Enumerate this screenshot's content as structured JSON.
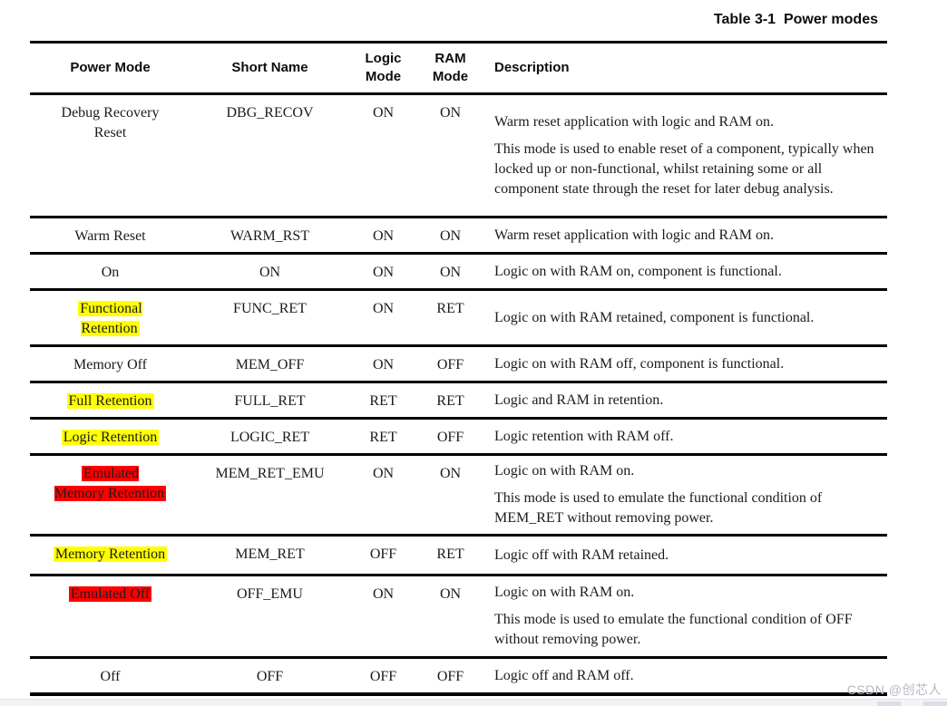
{
  "title": "Table 3-1  Power modes",
  "watermark": "CSDN @创芯人",
  "colors": {
    "highlight_yellow": "#ffff00",
    "highlight_red": "#ff0000",
    "rule_black": "#000000",
    "watermark_gray": "#b4b8bd"
  },
  "table": {
    "headers": [
      "Power Mode",
      "Short Name",
      "Logic Mode",
      "RAM Mode",
      "Description"
    ],
    "rows": [
      {
        "power_mode": {
          "lines": [
            "Debug Recovery",
            "Reset"
          ],
          "highlight": "none"
        },
        "short_name": "DBG_RECOV",
        "logic_mode": "ON",
        "ram_mode": "ON",
        "description": [
          "Warm reset application with logic and RAM on.",
          "This mode is used to enable reset of a component, typically when locked up or non-functional, whilst retaining some or all component state through the reset for later debug analysis."
        ]
      },
      {
        "power_mode": {
          "lines": [
            "Warm Reset"
          ],
          "highlight": "none"
        },
        "short_name": "WARM_RST",
        "logic_mode": "ON",
        "ram_mode": "ON",
        "description": [
          "Warm reset application with logic and RAM on."
        ]
      },
      {
        "power_mode": {
          "lines": [
            "On"
          ],
          "highlight": "none"
        },
        "short_name": "ON",
        "logic_mode": "ON",
        "ram_mode": "ON",
        "description": [
          "Logic on with RAM on, component is functional."
        ]
      },
      {
        "power_mode": {
          "lines": [
            "Functional",
            "Retention"
          ],
          "highlight": "yellow"
        },
        "short_name": "FUNC_RET",
        "logic_mode": "ON",
        "ram_mode": "RET",
        "description": [
          "Logic on with RAM retained, component is functional."
        ]
      },
      {
        "power_mode": {
          "lines": [
            "Memory Off"
          ],
          "highlight": "none"
        },
        "short_name": "MEM_OFF",
        "logic_mode": "ON",
        "ram_mode": "OFF",
        "description": [
          "Logic on with RAM off, component is functional."
        ]
      },
      {
        "power_mode": {
          "lines": [
            "Full Retention"
          ],
          "highlight": "yellow"
        },
        "short_name": "FULL_RET",
        "logic_mode": "RET",
        "ram_mode": "RET",
        "description": [
          "Logic and RAM in retention."
        ]
      },
      {
        "power_mode": {
          "lines": [
            "Logic Retention"
          ],
          "highlight": "yellow"
        },
        "short_name": "LOGIC_RET",
        "logic_mode": "RET",
        "ram_mode": "OFF",
        "description": [
          "Logic retention with RAM off."
        ]
      },
      {
        "power_mode": {
          "lines": [
            "Emulated",
            "Memory Retention"
          ],
          "highlight": "red"
        },
        "short_name": "MEM_RET_EMU",
        "logic_mode": "ON",
        "ram_mode": "ON",
        "description": [
          "Logic on with RAM on.",
          "This mode is used to emulate the functional condition of MEM_RET without removing power."
        ]
      },
      {
        "power_mode": {
          "lines": [
            "Memory Retention"
          ],
          "highlight": "yellow"
        },
        "short_name": "MEM_RET",
        "logic_mode": "OFF",
        "ram_mode": "RET",
        "description": [
          "Logic off with RAM retained."
        ]
      },
      {
        "power_mode": {
          "lines": [
            "Emulated Off"
          ],
          "highlight": "red"
        },
        "short_name": "OFF_EMU",
        "logic_mode": "ON",
        "ram_mode": "ON",
        "description": [
          "Logic on with RAM on.",
          "This mode is used to emulate the functional condition of OFF without removing power."
        ]
      },
      {
        "power_mode": {
          "lines": [
            "Off"
          ],
          "highlight": "none"
        },
        "short_name": "OFF",
        "logic_mode": "OFF",
        "ram_mode": "OFF",
        "description": [
          "Logic off and RAM off."
        ]
      }
    ]
  }
}
